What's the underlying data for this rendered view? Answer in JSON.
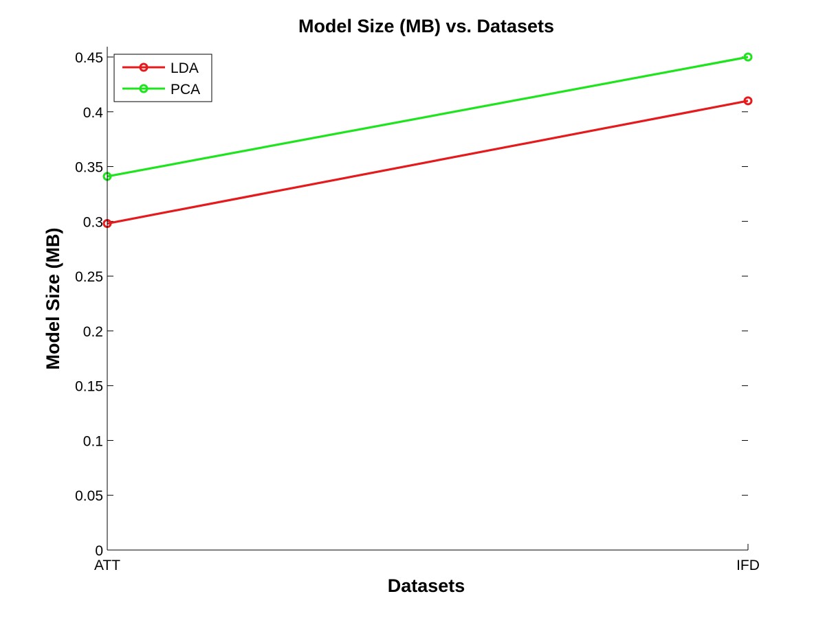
{
  "chart_data": {
    "type": "line",
    "title": "Model Size (MB) vs. Datasets",
    "xlabel": "Datasets",
    "ylabel": "Model Size (MB)",
    "categories": [
      "ATT",
      "IFD"
    ],
    "ylim": [
      0,
      0.46
    ],
    "yticks": [
      {
        "value": 0,
        "label": "0"
      },
      {
        "value": 0.05,
        "label": "0.05"
      },
      {
        "value": 0.1,
        "label": "0.1"
      },
      {
        "value": 0.15,
        "label": "0.15"
      },
      {
        "value": 0.2,
        "label": "0.2"
      },
      {
        "value": 0.25,
        "label": "0.25"
      },
      {
        "value": 0.3,
        "label": "0.3"
      },
      {
        "value": 0.35,
        "label": "0.35"
      },
      {
        "value": 0.4,
        "label": "0.4"
      },
      {
        "value": 0.45,
        "label": "0.45"
      }
    ],
    "series": [
      {
        "name": "LDA",
        "color": "#e41a1c",
        "values": [
          0.298,
          0.41
        ]
      },
      {
        "name": "PCA",
        "color": "#1ee41e",
        "values": [
          0.341,
          0.45
        ]
      }
    ],
    "legend": {
      "position": "top-left"
    },
    "grid": false
  }
}
